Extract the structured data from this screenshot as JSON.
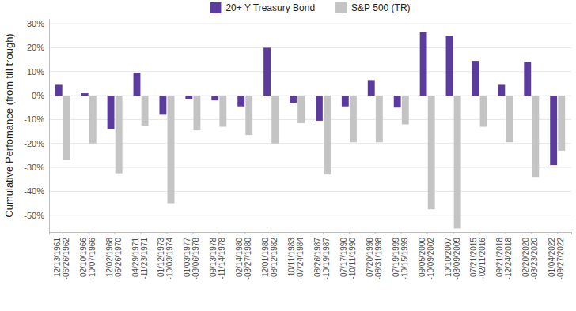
{
  "chart_data": {
    "type": "bar",
    "y_label": "Cumulative Perfomance (from till trough)",
    "categories": [
      "12/13/1961 -06/26/1962",
      "02/10/1966 -10/07/1966",
      "12/02/1968 -05/26/1970",
      "04/29/1971 -11/23/1971",
      "01/12/1973 -10/03/1974",
      "01/03/1977 -03/06/1978",
      "09/13/1978 -11/14/1978",
      "02/14/1980 -03/27/1980",
      "12/01/1980 -08/12/1982",
      "10/11/1983 -07/24/1984",
      "08/26/1987 -10/19/1987",
      "07/17/1990 -10/11/1990",
      "07/20/1998 -08/31/1998",
      "07/19/1999 -10/15/1999",
      "09/05/2000 -10/09/2002",
      "10/10/2007 -03/09/2009",
      "07/21/2015 -02/11/2016",
      "09/21/2018 -12/24/2018",
      "02/20/2020 -03/23/2020",
      "01/04/2022 -09/27/2022"
    ],
    "series": [
      {
        "name": "20+ Y Treasury Bond",
        "color": "#5b3c9e",
        "values": [
          4.5,
          1,
          -14,
          9.5,
          -8,
          -1.5,
          -2,
          -4.5,
          20,
          -3,
          -10.5,
          -4.5,
          6.5,
          -5,
          26.5,
          25,
          14.5,
          4.5,
          14,
          -29
        ]
      },
      {
        "name": "S&P 500 (TR)",
        "color": "#c4c4c4",
        "values": [
          -27,
          -20,
          -32.5,
          -12.5,
          -45,
          -14.5,
          -13,
          -16.5,
          -20,
          -11.5,
          -33,
          -19.5,
          -19.5,
          -12,
          -47.5,
          -55.5,
          -13,
          -19.5,
          -34,
          -23
        ]
      }
    ],
    "ylim": [
      -57,
      32
    ],
    "yticks": [
      {
        "value": -50,
        "label": "-50%"
      },
      {
        "value": -40,
        "label": "-40%"
      },
      {
        "value": -30,
        "label": "-30%"
      },
      {
        "value": -20,
        "label": "-20%"
      },
      {
        "value": -10,
        "label": "-10%"
      },
      {
        "value": 0,
        "label": "0%"
      },
      {
        "value": 10,
        "label": "10%"
      },
      {
        "value": 20,
        "label": "20%"
      },
      {
        "value": 30,
        "label": "30%"
      }
    ],
    "grid": true,
    "legend": "top"
  }
}
